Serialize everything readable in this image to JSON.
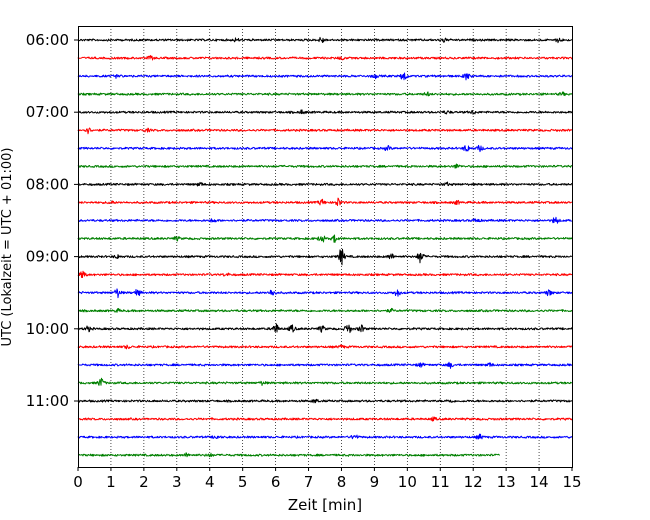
{
  "chart_data": {
    "type": "line",
    "title": "",
    "xlabel": "Zeit  [min]",
    "ylabel": "UTC (Lokalzeit = UTC + 01:00)",
    "xlim": [
      0,
      15
    ],
    "x_ticks": [
      "0",
      "1",
      "2",
      "3",
      "4",
      "5",
      "6",
      "7",
      "8",
      "9",
      "10",
      "11",
      "12",
      "13",
      "14",
      "15"
    ],
    "y_tick_labels": [
      "06:00",
      "07:00",
      "08:00",
      "09:00",
      "10:00",
      "11:00"
    ],
    "grid": "vertical dotted",
    "trace_interval_minutes": 15,
    "trace_colors": [
      "#000000",
      "#ff0000",
      "#0000ff",
      "#008000"
    ],
    "traces": [
      {
        "start": "06:00",
        "x_end": 15,
        "color": "#000000",
        "events": [
          [
            4.8,
            0.25
          ],
          [
            7.4,
            0.5
          ],
          [
            11.1,
            0.35
          ],
          [
            14.6,
            0.4
          ]
        ]
      },
      {
        "start": "06:15",
        "x_end": 15,
        "color": "#ff0000",
        "events": [
          [
            2.2,
            0.3
          ],
          [
            8.0,
            0.25
          ]
        ]
      },
      {
        "start": "06:30",
        "x_end": 15,
        "color": "#0000ff",
        "events": [
          [
            1.2,
            0.3
          ],
          [
            9.0,
            0.35
          ],
          [
            9.9,
            0.9
          ],
          [
            11.8,
            0.6
          ]
        ]
      },
      {
        "start": "06:45",
        "x_end": 15,
        "color": "#008000",
        "events": [
          [
            10.6,
            0.3
          ],
          [
            14.7,
            0.25
          ]
        ]
      },
      {
        "start": "07:00",
        "x_end": 15,
        "color": "#000000",
        "events": [
          [
            6.8,
            0.3
          ],
          [
            11.2,
            0.25
          ],
          [
            12.0,
            0.3
          ]
        ]
      },
      {
        "start": "07:15",
        "x_end": 15,
        "color": "#ff0000",
        "events": [
          [
            0.3,
            0.5
          ],
          [
            2.1,
            0.25
          ]
        ]
      },
      {
        "start": "07:30",
        "x_end": 15,
        "color": "#0000ff",
        "events": [
          [
            9.4,
            0.35
          ],
          [
            11.8,
            0.6
          ],
          [
            12.2,
            0.5
          ]
        ]
      },
      {
        "start": "07:45",
        "x_end": 15,
        "color": "#008000",
        "events": [
          [
            11.5,
            0.3
          ]
        ]
      },
      {
        "start": "08:00",
        "x_end": 15,
        "color": "#000000",
        "events": [
          [
            3.7,
            0.3
          ],
          [
            11.2,
            0.25
          ]
        ]
      },
      {
        "start": "08:15",
        "x_end": 15,
        "color": "#ff0000",
        "events": [
          [
            1.0,
            0.25
          ],
          [
            7.4,
            0.5
          ],
          [
            7.9,
            0.7
          ],
          [
            11.5,
            0.3
          ]
        ]
      },
      {
        "start": "08:30",
        "x_end": 15,
        "color": "#0000ff",
        "events": [
          [
            4.1,
            0.3
          ],
          [
            12.1,
            0.35
          ],
          [
            14.5,
            0.6
          ]
        ]
      },
      {
        "start": "08:45",
        "x_end": 15,
        "color": "#008000",
        "events": [
          [
            3.0,
            0.3
          ],
          [
            7.4,
            0.7
          ],
          [
            7.8,
            0.6
          ]
        ]
      },
      {
        "start": "09:00",
        "x_end": 15,
        "color": "#000000",
        "events": [
          [
            1.2,
            0.3
          ],
          [
            8.0,
            1.4
          ],
          [
            9.5,
            0.5
          ],
          [
            10.4,
            1.1
          ]
        ]
      },
      {
        "start": "09:15",
        "x_end": 15,
        "color": "#ff0000",
        "events": [
          [
            0.15,
            0.6
          ],
          [
            4.5,
            0.25
          ]
        ]
      },
      {
        "start": "09:30",
        "x_end": 15,
        "color": "#0000ff",
        "events": [
          [
            1.2,
            0.8
          ],
          [
            1.8,
            0.6
          ],
          [
            5.9,
            0.6
          ],
          [
            9.7,
            0.6
          ],
          [
            14.3,
            0.5
          ]
        ]
      },
      {
        "start": "09:45",
        "x_end": 15,
        "color": "#008000",
        "events": [
          [
            1.2,
            0.25
          ],
          [
            9.5,
            0.25
          ]
        ]
      },
      {
        "start": "10:00",
        "x_end": 15,
        "color": "#000000",
        "events": [
          [
            0.3,
            0.45
          ],
          [
            6.0,
            0.9
          ],
          [
            6.5,
            0.6
          ],
          [
            7.4,
            0.5
          ],
          [
            8.2,
            0.9
          ],
          [
            8.6,
            0.6
          ]
        ]
      },
      {
        "start": "10:15",
        "x_end": 15,
        "color": "#ff0000",
        "events": [
          [
            1.5,
            0.25
          ],
          [
            8.0,
            0.25
          ]
        ]
      },
      {
        "start": "10:30",
        "x_end": 15,
        "color": "#0000ff",
        "events": [
          [
            10.4,
            0.35
          ],
          [
            11.3,
            0.45
          ],
          [
            12.5,
            0.3
          ]
        ]
      },
      {
        "start": "10:45",
        "x_end": 15,
        "color": "#008000",
        "events": [
          [
            0.7,
            0.8
          ],
          [
            5.6,
            0.3
          ]
        ]
      },
      {
        "start": "11:00",
        "x_end": 15,
        "color": "#000000",
        "events": [
          [
            7.2,
            0.3
          ],
          [
            11.3,
            0.25
          ]
        ]
      },
      {
        "start": "11:15",
        "x_end": 15,
        "color": "#ff0000",
        "events": [
          [
            10.8,
            0.25
          ]
        ]
      },
      {
        "start": "11:30",
        "x_end": 15,
        "color": "#0000ff",
        "events": [
          [
            4.2,
            0.3
          ],
          [
            8.4,
            0.45
          ],
          [
            12.2,
            0.4
          ]
        ]
      },
      {
        "start": "11:45",
        "x_end": 12.8,
        "color": "#008000",
        "events": [
          [
            3.3,
            0.3
          ],
          [
            4.0,
            0.25
          ]
        ]
      }
    ]
  }
}
